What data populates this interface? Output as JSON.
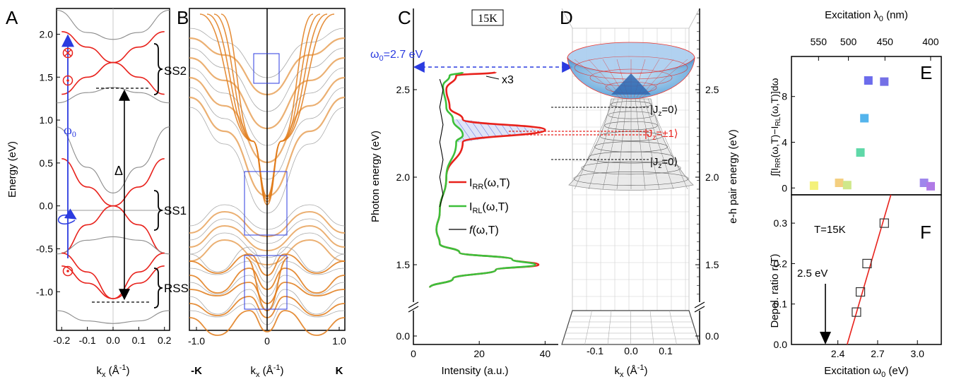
{
  "colors": {
    "red": "#e8221c",
    "green": "#3dbf3a",
    "blue": "#2b3be0",
    "orange": "#e07a18",
    "gray": "#8c8c8c"
  },
  "chart_data": [
    {
      "panel": "A",
      "type": "line",
      "title": "",
      "xlabel": "kx (Å-1)",
      "ylabel": "Energy (eV)",
      "xlim": [
        -0.22,
        0.22
      ],
      "ylim": [
        -1.45,
        2.3
      ],
      "xticks": [
        "-0.2",
        "-0.1",
        "0.0",
        "0.1",
        "0.2"
      ],
      "yticks": [
        "-1.0",
        "-0.5",
        "0.0",
        "0.5",
        "1.0",
        "1.5",
        "2.0"
      ],
      "annotations": [
        "SS2",
        "SS1",
        "RSS",
        "ω0",
        "Δ"
      ],
      "series": [
        {
          "color": "gray",
          "points": [
            [
              -0.22,
              2.28
            ],
            [
              -0.1,
              2.02
            ],
            [
              0,
              1.94
            ],
            [
              0.1,
              2.02
            ],
            [
              0.22,
              2.28
            ]
          ]
        },
        {
          "color": "red",
          "points": [
            [
              -0.2,
              2.03
            ],
            [
              -0.1,
              1.85
            ],
            [
              0,
              1.67
            ],
            [
              0.1,
              1.85
            ],
            [
              0.2,
              2.03
            ]
          ]
        },
        {
          "color": "red",
          "points": [
            [
              -0.2,
              1.3
            ],
            [
              -0.1,
              1.5
            ],
            [
              0,
              1.67
            ],
            [
              0.1,
              1.5
            ],
            [
              0.2,
              1.3
            ]
          ]
        },
        {
          "color": "gray",
          "points": [
            [
              -0.22,
              1.2
            ],
            [
              -0.1,
              1.32
            ],
            [
              0,
              1.38
            ],
            [
              0.1,
              1.32
            ],
            [
              0.22,
              1.2
            ]
          ]
        },
        {
          "color": "gray",
          "points": [
            [
              -0.22,
              0.92
            ],
            [
              -0.1,
              0.45
            ],
            [
              0,
              0.15
            ],
            [
              0.1,
              0.45
            ],
            [
              0.22,
              0.92
            ]
          ]
        },
        {
          "color": "red",
          "points": [
            [
              -0.2,
              0.55
            ],
            [
              -0.1,
              0.22
            ],
            [
              0,
              0.0
            ],
            [
              0.1,
              0.22
            ],
            [
              0.2,
              0.55
            ]
          ]
        },
        {
          "color": "red",
          "points": [
            [
              -0.2,
              -0.55
            ],
            [
              -0.1,
              -0.22
            ],
            [
              0,
              0.0
            ],
            [
              0.1,
              -0.22
            ],
            [
              0.2,
              -0.55
            ]
          ]
        },
        {
          "color": "gray",
          "points": [
            [
              -0.22,
              -0.56
            ],
            [
              -0.1,
              -0.4
            ],
            [
              0,
              -0.36
            ],
            [
              0.1,
              -0.4
            ],
            [
              0.22,
              -0.56
            ]
          ]
        },
        {
          "color": "red",
          "points": [
            [
              -0.2,
              -0.55
            ],
            [
              -0.1,
              -0.77
            ],
            [
              0,
              -1.08
            ],
            [
              0.1,
              -0.77
            ],
            [
              0.2,
              -0.55
            ]
          ]
        },
        {
          "color": "red",
          "points": [
            [
              -0.2,
              -0.7
            ],
            [
              -0.1,
              -0.9
            ],
            [
              0,
              -1.08
            ],
            [
              0.1,
              -0.9
            ],
            [
              0.2,
              -0.7
            ]
          ]
        },
        {
          "color": "gray",
          "points": [
            [
              -0.22,
              -1.22
            ],
            [
              -0.1,
              -1.34
            ],
            [
              0,
              -1.37
            ],
            [
              0.1,
              -1.34
            ],
            [
              0.22,
              -1.22
            ]
          ]
        }
      ]
    },
    {
      "panel": "B",
      "type": "line",
      "title": "",
      "xlabel": "kx (Å-1)",
      "xlim": [
        -1.0,
        1.0
      ],
      "xticks": [
        "-1.0",
        "0",
        "1.0"
      ],
      "xticks_extra": [
        "-K",
        "K"
      ]
    },
    {
      "panel": "C",
      "type": "line",
      "title": "15K",
      "xlabel": "Intensity (a.u.)",
      "ylabel": "Photon energy (eV)",
      "xlim": [
        0,
        44
      ],
      "xticks": [
        "0",
        "20",
        "40"
      ],
      "yticks": [
        "0.0",
        "1.5",
        "2.0",
        "2.5"
      ],
      "annotations": [
        "x3",
        "ω0=2.7 eV"
      ],
      "legend": [
        "IRR(ω,T)",
        "IRL(ω,T)",
        "f(ω,T)"
      ],
      "series": [
        {
          "name": "IRR(ω,T)",
          "color": "red",
          "points": [
            [
              5,
              1.37
            ],
            [
              12,
              1.42
            ],
            [
              25,
              1.47
            ],
            [
              38,
              1.5
            ],
            [
              30,
              1.53
            ],
            [
              14,
              1.57
            ],
            [
              8,
              1.62
            ],
            [
              7,
              1.7
            ],
            [
              8,
              1.8
            ],
            [
              10,
              2.0
            ],
            [
              15,
              2.2
            ],
            [
              40,
              2.27
            ],
            [
              15,
              2.33
            ],
            [
              11,
              2.4
            ],
            [
              10,
              2.5
            ],
            [
              13,
              2.58
            ],
            [
              25,
              2.6
            ]
          ]
        },
        {
          "name": "IRL(ω,T)",
          "color": "green",
          "points": [
            [
              5,
              1.37
            ],
            [
              12,
              1.42
            ],
            [
              25,
              1.47
            ],
            [
              37,
              1.5
            ],
            [
              30,
              1.53
            ],
            [
              14,
              1.57
            ],
            [
              8,
              1.62
            ],
            [
              7,
              1.7
            ],
            [
              8,
              1.8
            ],
            [
              10,
              2.0
            ],
            [
              13,
              2.2
            ],
            [
              15,
              2.24
            ],
            [
              12,
              2.33
            ],
            [
              10,
              2.4
            ],
            [
              9,
              2.52
            ],
            [
              11,
              2.58
            ],
            [
              15,
              2.6
            ]
          ]
        },
        {
          "name": "f(ω,T)",
          "color": "black",
          "points": [
            [
              8,
              1.83
            ],
            [
              9,
              1.9
            ],
            [
              8,
              2.0
            ],
            [
              9,
              2.1
            ],
            [
              8,
              2.2
            ],
            [
              9,
              2.3
            ],
            [
              8,
              2.4
            ],
            [
              9,
              2.5
            ],
            [
              8,
              2.56
            ]
          ]
        }
      ]
    },
    {
      "panel": "D",
      "type": "line",
      "title": "",
      "xlabel": "kx (Å-1)",
      "ylabel": "e-h pair energy (eV)",
      "xticks": [
        "-0.1",
        "0.0",
        "0.1"
      ],
      "yticks": [
        "0.0",
        "1.5",
        "2.0",
        "2.5"
      ],
      "annotations": [
        "|Jz=0⟩",
        "|Jz=±1⟩",
        "|Jz=0⟩"
      ]
    },
    {
      "panel": "E",
      "type": "scatter",
      "title": "",
      "xlabel_top": "Excitation λ0 (nm)",
      "ylabel": "∫[IRR(ω,T)−IRL(ω,T)]dω",
      "xlim": [
        2.05,
        3.18
      ],
      "ylim": [
        -0.6,
        11.5
      ],
      "xticks_top": [
        "550",
        "500",
        "450",
        "400"
      ],
      "yticks": [
        "0",
        "4",
        "8"
      ],
      "points": [
        {
          "x": 2.22,
          "y": 0.2,
          "color": "#f4f17a"
        },
        {
          "x": 2.41,
          "y": 0.45,
          "color": "#f4cf80"
        },
        {
          "x": 2.47,
          "y": 0.25,
          "color": "#cfe88a"
        },
        {
          "x": 2.57,
          "y": 3.1,
          "color": "#5fd8a8"
        },
        {
          "x": 2.6,
          "y": 6.1,
          "color": "#54b4ec"
        },
        {
          "x": 2.63,
          "y": 9.4,
          "color": "#6c6cec"
        },
        {
          "x": 2.75,
          "y": 9.3,
          "color": "#7470e6"
        },
        {
          "x": 3.05,
          "y": 0.45,
          "color": "#9f86ec"
        },
        {
          "x": 3.1,
          "y": 0.15,
          "color": "#b07ae6"
        }
      ]
    },
    {
      "panel": "F",
      "type": "scatter",
      "title": "",
      "xlabel": "Excitation ω0 (eV)",
      "ylabel": "Depol. ratio r(T)",
      "xlim": [
        2.05,
        3.18
      ],
      "ylim": [
        0.0,
        0.37
      ],
      "xticks": [
        "2.4",
        "2.7",
        "3.0"
      ],
      "yticks": [
        "0.0",
        "0.1",
        "0.2",
        "0.3"
      ],
      "annotations": [
        "T=15K",
        "2.5 eV"
      ],
      "points": [
        [
          2.54,
          0.08
        ],
        [
          2.57,
          0.13
        ],
        [
          2.62,
          0.2
        ],
        [
          2.75,
          0.3
        ]
      ],
      "fit_line": [
        [
          2.47,
          0.0
        ],
        [
          2.8,
          0.37
        ]
      ]
    }
  ],
  "labels": {
    "A": "A",
    "B": "B",
    "C": "C",
    "D": "D",
    "E": "E",
    "F": "F",
    "energy": "Energy (eV)",
    "kx": "k",
    "kx_sub": "x",
    "kx_unit": " (Å",
    "kx_exp": "-1",
    "kx_close": ")",
    "mK": "-K",
    "K": "K",
    "ss2": "SS2",
    "ss1": "SS1",
    "rss": "RSS",
    "omega": "ω",
    "omega_sub": "0",
    "delta": "Δ",
    "temp": "15K",
    "x3": "x3",
    "w0_label": "ω",
    "w0_sub": "0",
    "w0_val": "=2.7 eV",
    "photon": "Photon energy (eV)",
    "intensity": "Intensity (a.u.)",
    "I": "I",
    "rr": "RR",
    "rl": "RL",
    "wT": "(ω,T)",
    "f": "f",
    "eh": "e-h pair energy (eV)",
    "jz": "J",
    "jz_sub": "z",
    "jz0": "=0⟩",
    "jz1": "=±1⟩",
    "bar": "|",
    "lambda_top": "Excitation λ",
    "lambda_sub": "0",
    "nm": " (nm)",
    "int_label": "∫[I",
    "int_rr": "RR",
    "int_mid": "(ω,T)−I",
    "int_rl": "RL",
    "int_end": "(ω,T)]dω",
    "depol": "Depol. ratio r(T)",
    "exc_w": "Excitation ω",
    "exc_sub": "0",
    "exc_unit": " (eV)",
    "t15": "T=15K",
    "ev25": "2.5 eV"
  },
  "ticks": {
    "A_x": [
      "-0.2",
      "-0.1",
      "0.0",
      "0.1",
      "0.2"
    ],
    "A_y": [
      "-1.0",
      "-0.5",
      "0.0",
      "0.5",
      "1.0",
      "1.5",
      "2.0"
    ],
    "B_x": [
      "-1.0",
      "0",
      "1.0"
    ],
    "C_x": [
      "0",
      "20",
      "40"
    ],
    "C_y": [
      "0.0",
      "1.5",
      "2.0",
      "2.5"
    ],
    "D_x": [
      "-0.1",
      "0.0",
      "0.1"
    ],
    "D_y": [
      "0.0",
      "1.5",
      "2.0",
      "2.5"
    ],
    "E_top": [
      "550",
      "500",
      "450",
      "400"
    ],
    "E_y": [
      "0",
      "4",
      "8"
    ],
    "F_x": [
      "2.4",
      "2.7",
      "3.0"
    ],
    "F_y": [
      "0.0",
      "0.1",
      "0.2",
      "0.3"
    ]
  }
}
